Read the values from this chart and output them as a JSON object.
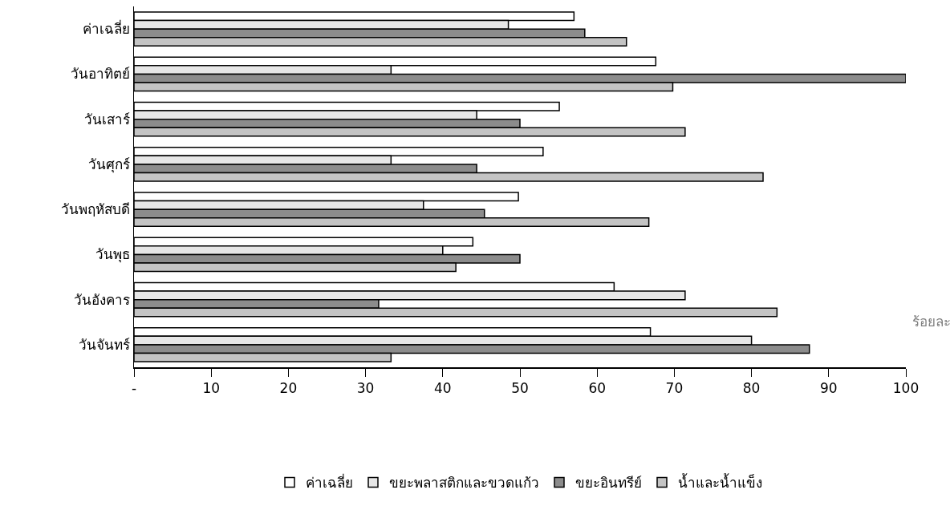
{
  "chart_data": {
    "type": "bar",
    "orientation": "horizontal",
    "xlabel": "ร้อยละ",
    "categories": [
      "ค่าเฉลี่ย",
      "วันอาทิตย์",
      "วันเสาร์",
      "วันศุกร์",
      "วันพฤหัสบดี",
      "วันพุธ",
      "วันอังคาร",
      "วันจันทร์"
    ],
    "series": [
      {
        "name": "ค่าเฉลี่ย",
        "color": "#ffffff",
        "values": [
          57.0,
          67.6,
          55.1,
          53.0,
          49.8,
          43.9,
          62.2,
          66.9
        ]
      },
      {
        "name": "ขยะพลาสติกและขวดแก้ว",
        "color": "#e6e6e6",
        "values": [
          48.5,
          33.3,
          44.4,
          33.3,
          37.5,
          40.0,
          71.4,
          80.0
        ]
      },
      {
        "name": "ขยะอินทรีย์",
        "color": "#8c8c8c",
        "values": [
          58.4,
          100,
          50.0,
          44.4,
          45.4,
          50.0,
          31.7,
          87.5
        ]
      },
      {
        "name": "น้ำและน้ำแข็ง",
        "color": "#c4c4c4",
        "values": [
          63.8,
          69.8,
          71.4,
          81.5,
          66.7,
          41.7,
          83.3,
          33.3
        ]
      }
    ],
    "xlim": [
      0,
      100
    ],
    "xticks": [
      {
        "value": 0,
        "label": "-"
      },
      10,
      20,
      30,
      40,
      50,
      60,
      70,
      80,
      90,
      100
    ],
    "grid": false,
    "legend": "bottom"
  }
}
